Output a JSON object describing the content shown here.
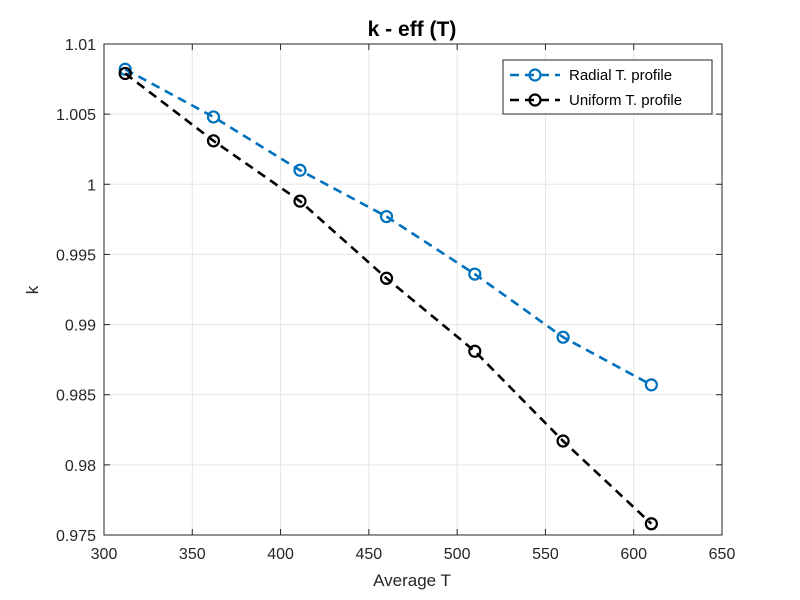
{
  "chart_data": {
    "type": "line",
    "title": "k - eff (T)",
    "xlabel": "Average T",
    "ylabel": "k",
    "xlim": [
      300,
      650
    ],
    "ylim": [
      0.975,
      1.01
    ],
    "xticks": [
      300,
      350,
      400,
      450,
      500,
      550,
      600,
      650
    ],
    "xtick_labels": [
      "300",
      "350",
      "400",
      "450",
      "500",
      "550",
      "600",
      "650"
    ],
    "yticks": [
      0.975,
      0.98,
      0.985,
      0.99,
      0.995,
      1.0,
      1.005,
      1.01
    ],
    "ytick_labels": [
      "0.975",
      "0.98",
      "0.985",
      "0.99",
      "0.995",
      "1",
      "1.005",
      "1.01"
    ],
    "grid": true,
    "legend_position": "top-right",
    "x": [
      312,
      362,
      411,
      460,
      510,
      560,
      610
    ],
    "series": [
      {
        "name": "Radial T. profile",
        "color": "#0072bd",
        "line_style": "dashed",
        "marker": "circle",
        "values": [
          1.0082,
          1.0048,
          1.001,
          0.9977,
          0.9936,
          0.9891,
          0.9857
        ]
      },
      {
        "name": "Uniform T. profile",
        "color": "#000000",
        "line_style": "dashed",
        "marker": "circle",
        "values": [
          1.0079,
          1.0031,
          0.9988,
          0.9933,
          0.9881,
          0.9817,
          0.9758
        ]
      }
    ]
  }
}
